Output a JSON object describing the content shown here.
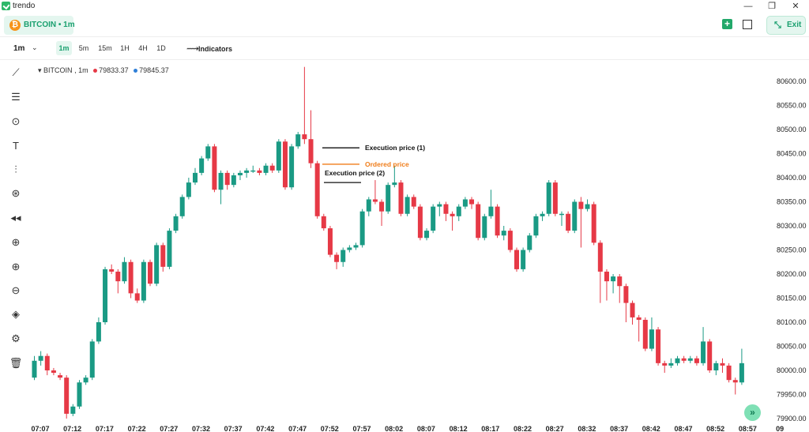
{
  "app": {
    "title": "trendo",
    "logo_icon": "check-logo-icon"
  },
  "window_controls": {
    "minimize": "—",
    "restore": "❐",
    "close": "✕"
  },
  "header": {
    "symbol_label": "BITCOIN • 1m",
    "symbol_icon": "₿",
    "add_icon": "+",
    "exit_label": "Exit",
    "exit_icon": "⤡"
  },
  "toolbar": {
    "interval_value": "1m",
    "timeframes": [
      "1m",
      "5m",
      "15m",
      "1H",
      "4H",
      "1D"
    ],
    "active_timeframe": "1m",
    "indicators_label": "Indicators"
  },
  "legend": {
    "symbol": "BITCOIN",
    "interval": "1m",
    "price_red": "79833.37",
    "price_blue": "79845.37",
    "red_color": "#e63946",
    "blue_color": "#2f7fd8"
  },
  "chart_data": {
    "type": "candlestick",
    "colors": {
      "up": "#1a9a84",
      "down": "#e63946"
    },
    "ylim": [
      79885,
      80640
    ],
    "y_ticks": [
      80600,
      80550,
      80500,
      80450,
      80400,
      80350,
      80300,
      80250,
      80200,
      80150,
      80100,
      80050,
      80000,
      79950,
      79900
    ],
    "y_tick_labels": [
      "80600.00",
      "80550.00",
      "80500.00",
      "80450.00",
      "80400.00",
      "80350.00",
      "80300.00",
      "80250.00",
      "80200.00",
      "80150.00",
      "80100.00",
      "80050.00",
      "80000.00",
      "79950.00",
      "79900.00"
    ],
    "x_tick_labels": [
      "07:07",
      "07:12",
      "07:17",
      "07:22",
      "07:27",
      "07:32",
      "07:37",
      "07:42",
      "07:47",
      "07:52",
      "07:57",
      "08:02",
      "08:07",
      "08:12",
      "08:17",
      "08:22",
      "08:27",
      "08:32",
      "08:37",
      "08:42",
      "08:47",
      "08:52",
      "08:57",
      "09"
    ],
    "candles": [
      [
        79985,
        80020,
        80030,
        79980
      ],
      [
        80020,
        80030,
        80040,
        80010
      ],
      [
        80030,
        80000,
        80035,
        79990
      ],
      [
        80000,
        79995,
        80005,
        79990
      ],
      [
        79990,
        79985,
        79995,
        79980
      ],
      [
        79985,
        79910,
        79990,
        79900
      ],
      [
        79910,
        79925,
        79930,
        79905
      ],
      [
        79925,
        79975,
        79980,
        79920
      ],
      [
        79975,
        79985,
        79990,
        79970
      ],
      [
        79985,
        80060,
        80065,
        79980
      ],
      [
        80060,
        80100,
        80110,
        80055
      ],
      [
        80100,
        80210,
        80215,
        80095
      ],
      [
        80210,
        80205,
        80220,
        80200
      ],
      [
        80205,
        80185,
        80210,
        80160
      ],
      [
        80185,
        80225,
        80235,
        80180
      ],
      [
        80225,
        80160,
        80230,
        80150
      ],
      [
        80160,
        80145,
        80170,
        80140
      ],
      [
        80145,
        80225,
        80230,
        80140
      ],
      [
        80225,
        80180,
        80230,
        80175
      ],
      [
        80180,
        80260,
        80265,
        80175
      ],
      [
        80260,
        80215,
        80265,
        80205
      ],
      [
        80215,
        80290,
        80295,
        80210
      ],
      [
        80290,
        80320,
        80325,
        80285
      ],
      [
        80320,
        80360,
        80365,
        80315
      ],
      [
        80360,
        80390,
        80400,
        80355
      ],
      [
        80390,
        80410,
        80420,
        80385
      ],
      [
        80410,
        80440,
        80445,
        80405
      ],
      [
        80440,
        80465,
        80470,
        80435
      ],
      [
        80465,
        80375,
        80470,
        80370
      ],
      [
        80375,
        80410,
        80415,
        80345
      ],
      [
        80410,
        80385,
        80415,
        80375
      ],
      [
        80385,
        80405,
        80410,
        80380
      ],
      [
        80405,
        80410,
        80415,
        80395
      ],
      [
        80410,
        80415,
        80420,
        80400
      ],
      [
        80415,
        80415,
        80425,
        80410
      ],
      [
        80415,
        80410,
        80420,
        80405
      ],
      [
        80410,
        80425,
        80430,
        80405
      ],
      [
        80425,
        80415,
        80430,
        80410
      ],
      [
        80415,
        80475,
        80480,
        80410
      ],
      [
        80475,
        80380,
        80480,
        80375
      ],
      [
        80380,
        80465,
        80470,
        80375
      ],
      [
        80465,
        80490,
        80495,
        80460
      ],
      [
        80490,
        80480,
        80630,
        80470
      ],
      [
        80480,
        80430,
        80540,
        80420
      ],
      [
        80430,
        80320,
        80435,
        80315
      ],
      [
        80320,
        80295,
        80325,
        80290
      ],
      [
        80295,
        80240,
        80300,
        80235
      ],
      [
        80240,
        80225,
        80245,
        80210
      ],
      [
        80225,
        80250,
        80255,
        80215
      ],
      [
        80250,
        80255,
        80260,
        80245
      ],
      [
        80255,
        80260,
        80265,
        80250
      ],
      [
        80260,
        80330,
        80335,
        80255
      ],
      [
        80330,
        80355,
        80360,
        80320
      ],
      [
        80355,
        80350,
        80395,
        80345
      ],
      [
        80350,
        80330,
        80355,
        80300
      ],
      [
        80330,
        80385,
        80390,
        80325
      ],
      [
        80385,
        80390,
        80425,
        80380
      ],
      [
        80390,
        80325,
        80395,
        80320
      ],
      [
        80325,
        80360,
        80365,
        80320
      ],
      [
        80360,
        80340,
        80365,
        80335
      ],
      [
        80340,
        80275,
        80345,
        80270
      ],
      [
        80275,
        80290,
        80295,
        80270
      ],
      [
        80290,
        80340,
        80345,
        80285
      ],
      [
        80340,
        80345,
        80350,
        80320
      ],
      [
        80345,
        80325,
        80350,
        80310
      ],
      [
        80325,
        80320,
        80330,
        80290
      ],
      [
        80320,
        80340,
        80345,
        80310
      ],
      [
        80340,
        80355,
        80360,
        80335
      ],
      [
        80355,
        80345,
        80360,
        80335
      ],
      [
        80345,
        80275,
        80350,
        80270
      ],
      [
        80275,
        80320,
        80325,
        80270
      ],
      [
        80320,
        80340,
        80375,
        80315
      ],
      [
        80340,
        80280,
        80345,
        80275
      ],
      [
        80280,
        80290,
        80300,
        80270
      ],
      [
        80290,
        80250,
        80295,
        80245
      ],
      [
        80250,
        80210,
        80255,
        80205
      ],
      [
        80210,
        80250,
        80255,
        80205
      ],
      [
        80250,
        80280,
        80285,
        80245
      ],
      [
        80280,
        80320,
        80325,
        80275
      ],
      [
        80320,
        80325,
        80330,
        80310
      ],
      [
        80325,
        80390,
        80395,
        80320
      ],
      [
        80390,
        80325,
        80395,
        80320
      ],
      [
        80325,
        80325,
        80330,
        80300
      ],
      [
        80325,
        80290,
        80330,
        80285
      ],
      [
        80290,
        80350,
        80355,
        80285
      ],
      [
        80350,
        80335,
        80360,
        80255
      ],
      [
        80335,
        80345,
        80355,
        80330
      ],
      [
        80345,
        80265,
        80350,
        80260
      ],
      [
        80265,
        80205,
        80270,
        80140
      ],
      [
        80205,
        80185,
        80210,
        80145
      ],
      [
        80185,
        80195,
        80200,
        80160
      ],
      [
        80195,
        80175,
        80200,
        80140
      ],
      [
        80175,
        80140,
        80180,
        80100
      ],
      [
        80140,
        80110,
        80145,
        80095
      ],
      [
        80110,
        80105,
        80115,
        80060
      ],
      [
        80105,
        80045,
        80110,
        80040
      ],
      [
        80045,
        80085,
        80110,
        80040
      ],
      [
        80085,
        80015,
        80090,
        80010
      ],
      [
        80015,
        80010,
        80020,
        79995
      ],
      [
        80010,
        80015,
        80025,
        80005
      ],
      [
        80015,
        80025,
        80030,
        80010
      ],
      [
        80025,
        80020,
        80030,
        80015
      ],
      [
        80020,
        80025,
        80030,
        80015
      ],
      [
        80025,
        80015,
        80030,
        80010
      ],
      [
        80015,
        80060,
        80090,
        80010
      ],
      [
        80060,
        80000,
        80065,
        79995
      ],
      [
        80000,
        80015,
        80020,
        79990
      ],
      [
        80015,
        80010,
        80025,
        79995
      ],
      [
        80010,
        79980,
        80015,
        79975
      ],
      [
        79980,
        79975,
        79985,
        79950
      ],
      [
        79975,
        80015,
        80045,
        79970
      ]
    ],
    "annotations": [
      {
        "label": "Execution price (1)",
        "price": 80462,
        "color": "#111111"
      },
      {
        "label": "Ordered price",
        "price": 80428,
        "color": "#f07d1a"
      },
      {
        "label": "Execution price (2)",
        "price": 80390,
        "color": "#111111"
      }
    ]
  },
  "sidebar_tools": [
    {
      "name": "trend-line-tool-icon",
      "glyph": "⟋"
    },
    {
      "name": "horizontal-lines-tool-icon",
      "glyph": "☰"
    },
    {
      "name": "circle-target-tool-icon",
      "glyph": "⊙"
    },
    {
      "name": "text-tool-icon",
      "glyph": "T"
    },
    {
      "name": "candles-tool-icon",
      "glyph": "⫶"
    },
    {
      "name": "crosshair-tool-icon",
      "glyph": "⊛"
    },
    {
      "name": "rewind-tool-icon",
      "glyph": "◂◂"
    },
    {
      "name": "add-circle-tool-icon",
      "glyph": "⊕"
    },
    {
      "name": "zoom-in-tool-icon",
      "glyph": "⊕"
    },
    {
      "name": "zoom-out-tool-icon",
      "glyph": "⊖"
    },
    {
      "name": "layers-tool-icon",
      "glyph": "◈"
    },
    {
      "name": "settings-tool-icon",
      "glyph": "⚙"
    },
    {
      "name": "trash-tool-icon",
      "glyph": "🗑"
    }
  ],
  "scroll_button": {
    "glyph": "»"
  }
}
